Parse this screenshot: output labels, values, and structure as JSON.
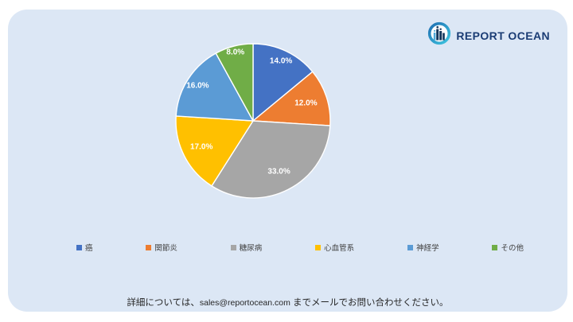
{
  "logo": {
    "text": "REPORT OCEAN",
    "icon": "bar-chart-circle-icon",
    "navy": "#1a3c74"
  },
  "chart_data": {
    "type": "pie",
    "title": "",
    "categories": [
      "癌",
      "関節炎",
      "糖尿病",
      "心血管系",
      "神経学",
      "その他"
    ],
    "values": [
      14,
      12,
      33,
      17,
      16,
      8
    ],
    "labels": [
      "14.0%",
      "12.0%",
      "33.0%",
      "17.0%",
      "16.0%",
      "8.0%"
    ],
    "colors": [
      "#4472C4",
      "#ED7D31",
      "#A6A6A6",
      "#FFC000",
      "#5B9BD5",
      "#70AD47"
    ],
    "total": 100,
    "start_angle_deg": 0,
    "direction": "clockwise",
    "legend_position": "bottom",
    "slice_border_color": "#FFFFFF",
    "label_color": "#FFFFFF",
    "label_radius_fractions": [
      0.85,
      0.72,
      0.74,
      0.75,
      0.85,
      0.92
    ]
  },
  "footer": {
    "prefix": "詳細については、",
    "email": "sales@reportocean.com",
    "suffix": " までメールでお問い合わせください。"
  },
  "colors": {
    "page_bg": "#FFFFFF",
    "card_bg": "#DCE7F5",
    "legend_text": "#404040",
    "footer_text": "#262626"
  }
}
